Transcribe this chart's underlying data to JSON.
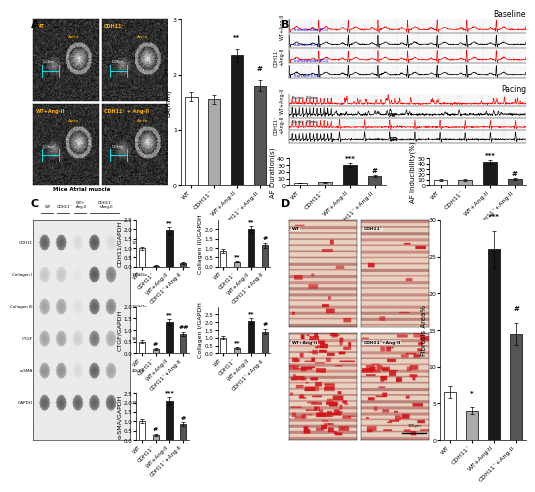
{
  "groups": [
    "WT",
    "CDH11⁻",
    "WT+Ang-II",
    "CDH11⁻+Ang-II"
  ],
  "LA_values": [
    1.6,
    1.55,
    2.35,
    1.8
  ],
  "LA_errors": [
    0.08,
    0.08,
    0.12,
    0.1
  ],
  "LA_ylabel": "LA(mm)",
  "LA_ylim": [
    0,
    3.0
  ],
  "LA_yticks": [
    0,
    1,
    2,
    3
  ],
  "LA_sig": {
    "WT+Ang-II": "**",
    "CDH11⁻+Ang-II": "#"
  },
  "ColIII_values": [
    0.85,
    0.28,
    2.0,
    1.15
  ],
  "ColIII_errors": [
    0.1,
    0.05,
    0.18,
    0.12
  ],
  "ColIII_ylabel": "Collagen III/GAPDH",
  "ColIII_ylim": [
    0,
    2.5
  ],
  "ColIII_yticks": [
    0,
    0.5,
    1.0,
    1.5,
    2.0
  ],
  "ColIII_sig": {
    "CDH11⁻": "**",
    "WT+Ang-II": "**",
    "CDH11⁻+Ang-II": "#"
  },
  "CDH11_values": [
    1.0,
    0.05,
    1.95,
    0.2
  ],
  "CDH11_errors": [
    0.08,
    0.02,
    0.18,
    0.04
  ],
  "CDH11_ylabel": "CDH11/GAPDH",
  "CDH11_ylim": [
    0,
    2.5
  ],
  "CDH11_yticks": [
    0,
    0.5,
    1.0,
    1.5,
    2.0,
    2.5
  ],
  "CDH11_sig": {
    "WT+Ang-II": "**"
  },
  "ColI_values": [
    1.0,
    0.35,
    2.1,
    1.4
  ],
  "ColI_errors": [
    0.1,
    0.05,
    0.2,
    0.15
  ],
  "ColI_ylabel": "Collagen I/GAPDH",
  "ColI_ylim": [
    0,
    3.0
  ],
  "ColI_yticks": [
    0,
    0.5,
    1.0,
    1.5,
    2.0,
    2.5
  ],
  "ColI_sig": {
    "CDH11⁻": "**",
    "WT+Ang-II": "**",
    "CDH11⁻+Ang-II": "#"
  },
  "CTGF_values": [
    0.5,
    0.18,
    1.35,
    0.82
  ],
  "CTGF_errors": [
    0.06,
    0.03,
    0.13,
    0.09
  ],
  "CTGF_ylabel": "CTGF/GAPDH",
  "CTGF_ylim": [
    0,
    2.0
  ],
  "CTGF_yticks": [
    0,
    0.5,
    1.0,
    1.5,
    2.0
  ],
  "CTGF_sig": {
    "CDH11⁻": "#",
    "WT+Ang-II": "**",
    "CDH11⁻+Ang-II": "##"
  },
  "aSMA_values": [
    1.0,
    0.28,
    2.1,
    0.85
  ],
  "aSMA_errors": [
    0.1,
    0.04,
    0.2,
    0.09
  ],
  "aSMA_ylabel": "α-SMA/GAPDH",
  "aSMA_ylim": [
    0,
    2.5
  ],
  "aSMA_yticks": [
    0,
    0.5,
    1.0,
    1.5,
    2.0,
    2.5
  ],
  "aSMA_sig": {
    "CDH11⁻": "#",
    "WT+Ang-II": "***",
    "CDH11⁻+Ang-II": "#"
  },
  "AF_dur_values": [
    3.5,
    4.2,
    30.0,
    14.0
  ],
  "AF_dur_errors": [
    0.5,
    0.6,
    3.0,
    1.8
  ],
  "AF_dur_ylabel": "AF Duration(s)",
  "AF_dur_ylim": [
    0,
    40
  ],
  "AF_dur_yticks": [
    0,
    10,
    20,
    30,
    40
  ],
  "AF_dur_sig": {
    "WT+Ang-II": "***",
    "CDH11⁻+Ang-II": "#"
  },
  "AF_ind_values": [
    10.0,
    9.5,
    43.0,
    12.0
  ],
  "AF_ind_errors": [
    1.5,
    1.5,
    4.0,
    2.0
  ],
  "AF_ind_ylabel": "AF Inducibility(%)",
  "AF_ind_ylim": [
    0,
    50
  ],
  "AF_ind_yticks": [
    0,
    10,
    20,
    30,
    40,
    50
  ],
  "AF_ind_sig": {
    "WT+Ang-II": "***",
    "CDH11⁻+Ang-II": "#"
  },
  "Fibrosis_values": [
    6.5,
    4.0,
    26.0,
    14.5
  ],
  "Fibrosis_errors": [
    0.8,
    0.5,
    2.5,
    1.5
  ],
  "Fibrosis_ylabel": "Fibrosis Area%",
  "Fibrosis_ylim": [
    0,
    30
  ],
  "Fibrosis_yticks": [
    0,
    5,
    10,
    15,
    20,
    25,
    30
  ],
  "Fibrosis_sig": {
    "CDH11⁻": "*",
    "WT+Ang-II": "***",
    "CDH11⁻+Ang-II": "#"
  },
  "bar_colors": [
    "white",
    "#aaaaaa",
    "#1a1a1a",
    "#555555"
  ],
  "bar_edgecolor": "black",
  "bar_width": 0.55,
  "wb_proteins": [
    "CDH11",
    "Collagen I",
    "Collagen III",
    "CTGF",
    "α-SMA",
    "GAPDH"
  ],
  "wb_sizes": [
    "120kDa",
    "130kDa",
    "130kDa",
    "36kDa",
    "42kDa",
    "37kDa"
  ],
  "wb_band_patterns": [
    [
      0.85,
      0.85,
      0.2,
      0.9,
      0.2
    ],
    [
      0.3,
      0.3,
      0.15,
      0.9,
      0.7
    ],
    [
      0.5,
      0.5,
      0.18,
      0.85,
      0.65
    ],
    [
      0.5,
      0.5,
      0.25,
      0.75,
      0.45
    ],
    [
      0.6,
      0.6,
      0.2,
      0.85,
      0.5
    ],
    [
      0.85,
      0.85,
      0.85,
      0.85,
      0.85
    ]
  ],
  "wb_col_headers": [
    "WT",
    "CDH11⁻",
    "WT+\nAng-II",
    "CDH11⁻\n+Ang-II"
  ],
  "panel_label_fontsize": 8,
  "tick_fontsize": 4.5,
  "ylabel_fontsize": 5,
  "sig_fontsize": 5,
  "fig_width": 5.0,
  "fig_height": 4.36,
  "background_color": "white"
}
